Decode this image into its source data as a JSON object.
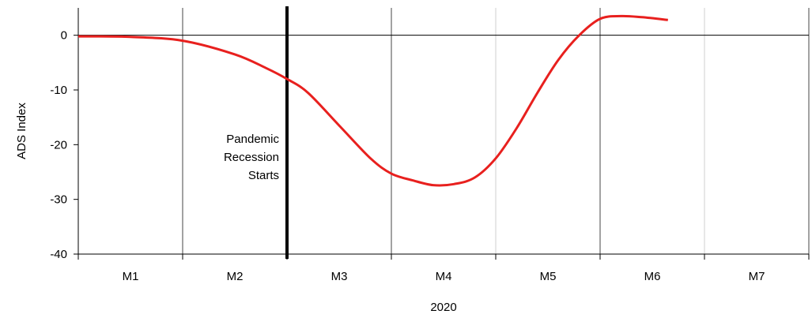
{
  "chart_data": {
    "type": "line",
    "title": "",
    "xlabel": "2020",
    "ylabel": "ADS Index",
    "ylim": [
      -40,
      5
    ],
    "yticks": [
      0,
      -10,
      -20,
      -30,
      -40
    ],
    "xlim": [
      0,
      7
    ],
    "categories": [
      "M1",
      "M2",
      "M3",
      "M4",
      "M5",
      "M6",
      "M7"
    ],
    "grid": "vertical lines at month boundaries; horizontal line at zero",
    "series": [
      {
        "color": "#e8201e",
        "x": [
          0,
          0.5,
          1.0,
          1.5,
          1.8,
          2.0,
          2.2,
          2.5,
          2.8,
          3.0,
          3.2,
          3.4,
          3.6,
          3.8,
          4.0,
          4.2,
          4.4,
          4.6,
          4.8,
          5.0,
          5.2,
          5.4,
          5.65
        ],
        "values": [
          -0.2,
          -0.3,
          -1.0,
          -3.5,
          -6.0,
          -8.0,
          -10.5,
          -16.5,
          -22.5,
          -25.3,
          -26.5,
          -27.4,
          -27.2,
          -26.0,
          -22.5,
          -17.0,
          -10.5,
          -4.5,
          0.0,
          3.0,
          3.5,
          3.3,
          2.8
        ]
      }
    ],
    "annotations": [
      {
        "text_lines": [
          "Pandemic",
          "Recession",
          "Starts"
        ],
        "x": 2.0
      }
    ]
  }
}
